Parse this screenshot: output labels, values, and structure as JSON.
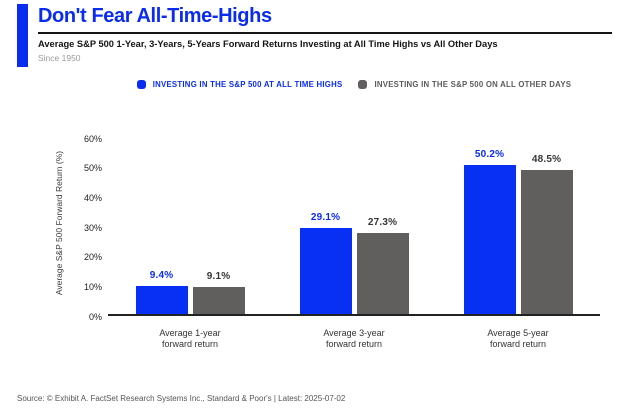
{
  "header": {
    "title": "Don't Fear All-Time-Highs",
    "subtitle": "Average S&P 500 1-Year, 3-Years, 5-Years Forward Returns Investing at All Time Highs vs All Other Days",
    "period": "Since 1950"
  },
  "legend": {
    "items": [
      {
        "label": "INVESTING IN THE S&P 500 AT ALL TIME HIGHS",
        "color": "#0a2cf0"
      },
      {
        "label": "INVESTING IN THE S&P 500 ON ALL OTHER DAYS",
        "color": "#615e5e"
      }
    ]
  },
  "chart_data": {
    "type": "bar",
    "title": "Don't Fear All-Time-Highs",
    "subtitle": "Average S&P 500 1-Year, 3-Years, 5-Years Forward Returns Investing at All Time Highs vs All Other Days",
    "categories": [
      "Average 1-year forward return",
      "Average 3-year forward return",
      "Average 5-year forward return"
    ],
    "series": [
      {
        "name": "INVESTING IN THE S&P 500 AT ALL TIME HIGHS",
        "values": [
          9.4,
          29.1,
          50.2
        ],
        "value_labels": [
          "9.4%",
          "29.1%",
          "50.2%"
        ],
        "color": "#0830f4",
        "value_label_color": "#0a2cf0"
      },
      {
        "name": "INVESTING IN THE S&P 500 ON ALL OTHER DAYS",
        "values": [
          9.1,
          27.3,
          48.5
        ],
        "value_labels": [
          "9.1%",
          "27.3%",
          "48.5%"
        ],
        "color": "#615e5e",
        "value_label_color": "#383535"
      }
    ],
    "xlabel": "",
    "ylabel": "Average S&P 500 Forward Return (%)",
    "ylim": [
      0,
      60
    ],
    "yticks": [
      0,
      10,
      20,
      30,
      40,
      50,
      60
    ],
    "ytick_labels": [
      "0%",
      "10%",
      "20%",
      "30%",
      "40%",
      "50%",
      "60%"
    ],
    "grid": false,
    "legend_position": "top"
  },
  "colors": {
    "accent_blue": "#0a2cf0",
    "bar_blue": "#0830f4",
    "bar_gray": "#615e5e",
    "rule_dark": "#141414"
  },
  "source": {
    "text": "Source: © Exhibit A. FactSet Research Systems Inc., Standard & Poor's | Latest: 2025-07-02"
  }
}
